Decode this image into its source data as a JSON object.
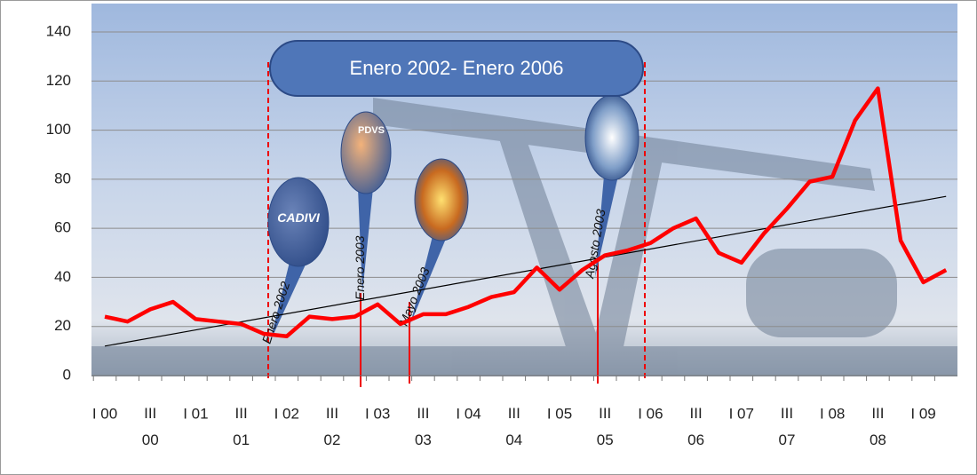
{
  "chart_data": {
    "type": "line",
    "categories": [
      "I 00",
      null,
      "III 00",
      null,
      "I 01",
      null,
      "III 01",
      null,
      "I 02",
      null,
      "III 02",
      null,
      "I 03",
      null,
      "III 03",
      null,
      "I 04",
      null,
      "III 04",
      null,
      "I 05",
      null,
      "III 05",
      null,
      "I 06",
      null,
      "III 06",
      null,
      "I 07",
      null,
      "III 07",
      null,
      "I 08",
      null,
      "III 08",
      null,
      "I 09",
      null
    ],
    "series": [
      {
        "color": "#ff0000",
        "values": [
          24,
          22,
          27,
          30,
          23,
          22,
          21,
          17,
          16,
          24,
          23,
          24,
          29,
          21,
          25,
          25,
          28,
          32,
          34,
          44,
          35,
          43,
          49,
          51,
          54,
          60,
          64,
          50,
          46,
          58,
          68,
          79,
          81,
          104,
          117,
          55,
          38,
          43
        ]
      }
    ],
    "trend": {
      "color": "#000000",
      "start": 12,
      "end": 73
    },
    "ylim": [
      0,
      140
    ],
    "yticks": [
      0,
      20,
      40,
      60,
      80,
      100,
      120,
      140
    ],
    "grid": true,
    "annotations": {
      "period": "Enero 2002- Enero 2006",
      "events": [
        "Enero 2002",
        "Enero 2003",
        "Mayo 2003",
        "Agosto 2003"
      ],
      "logos": [
        "CADIVI",
        "PDVS"
      ]
    }
  }
}
